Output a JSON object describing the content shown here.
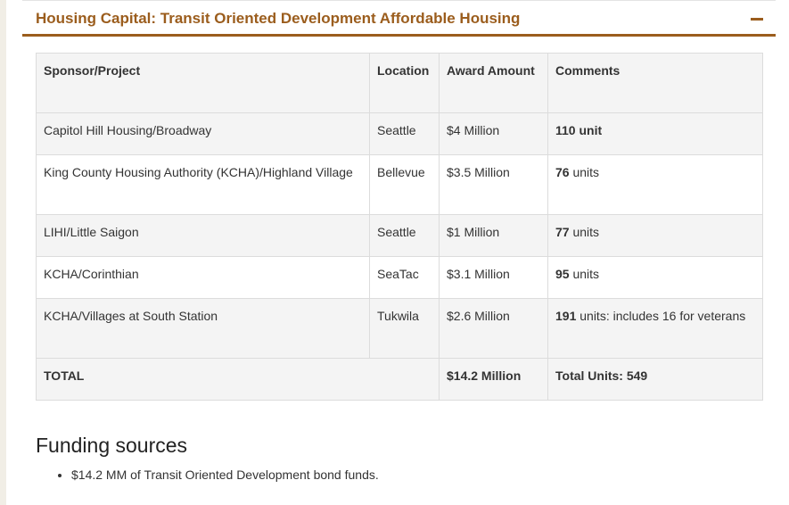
{
  "accordion": {
    "title": "Housing Capital: Transit Oriented Development Affordable Housing"
  },
  "table": {
    "headers": {
      "sponsor": "Sponsor/Project",
      "location": "Location",
      "award": "Award Amount",
      "comments": "Comments"
    },
    "rows": [
      {
        "sponsor": "Capitol Hill Housing/Broadway",
        "location": "Seattle",
        "award": "$4 Million",
        "units_num": "110 unit",
        "units_rest": ""
      },
      {
        "sponsor": "King County Housing Authority (KCHA)/Highland Village",
        "location": "Bellevue",
        "award": "$3.5 Million",
        "units_num": "76",
        "units_rest": " units"
      },
      {
        "sponsor": "LIHI/Little Saigon",
        "location": "Seattle",
        "award": "$1 Million",
        "units_num": "77",
        "units_rest": " units"
      },
      {
        "sponsor": "KCHA/Corinthian",
        "location": "SeaTac",
        "award": "$3.1 Million",
        "units_num": "95",
        "units_rest": " units"
      },
      {
        "sponsor": "KCHA/Villages at South Station",
        "location": "Tukwila",
        "award": "$2.6 Million",
        "units_num": "191",
        "units_rest": " units: includes 16 for veterans"
      }
    ],
    "total": {
      "label": "TOTAL",
      "award": "$14.2 Million",
      "comments": "Total Units: 549"
    }
  },
  "funding": {
    "heading": "Funding sources",
    "items": [
      "$14.2 MM of Transit Oriented Development bond funds."
    ]
  }
}
